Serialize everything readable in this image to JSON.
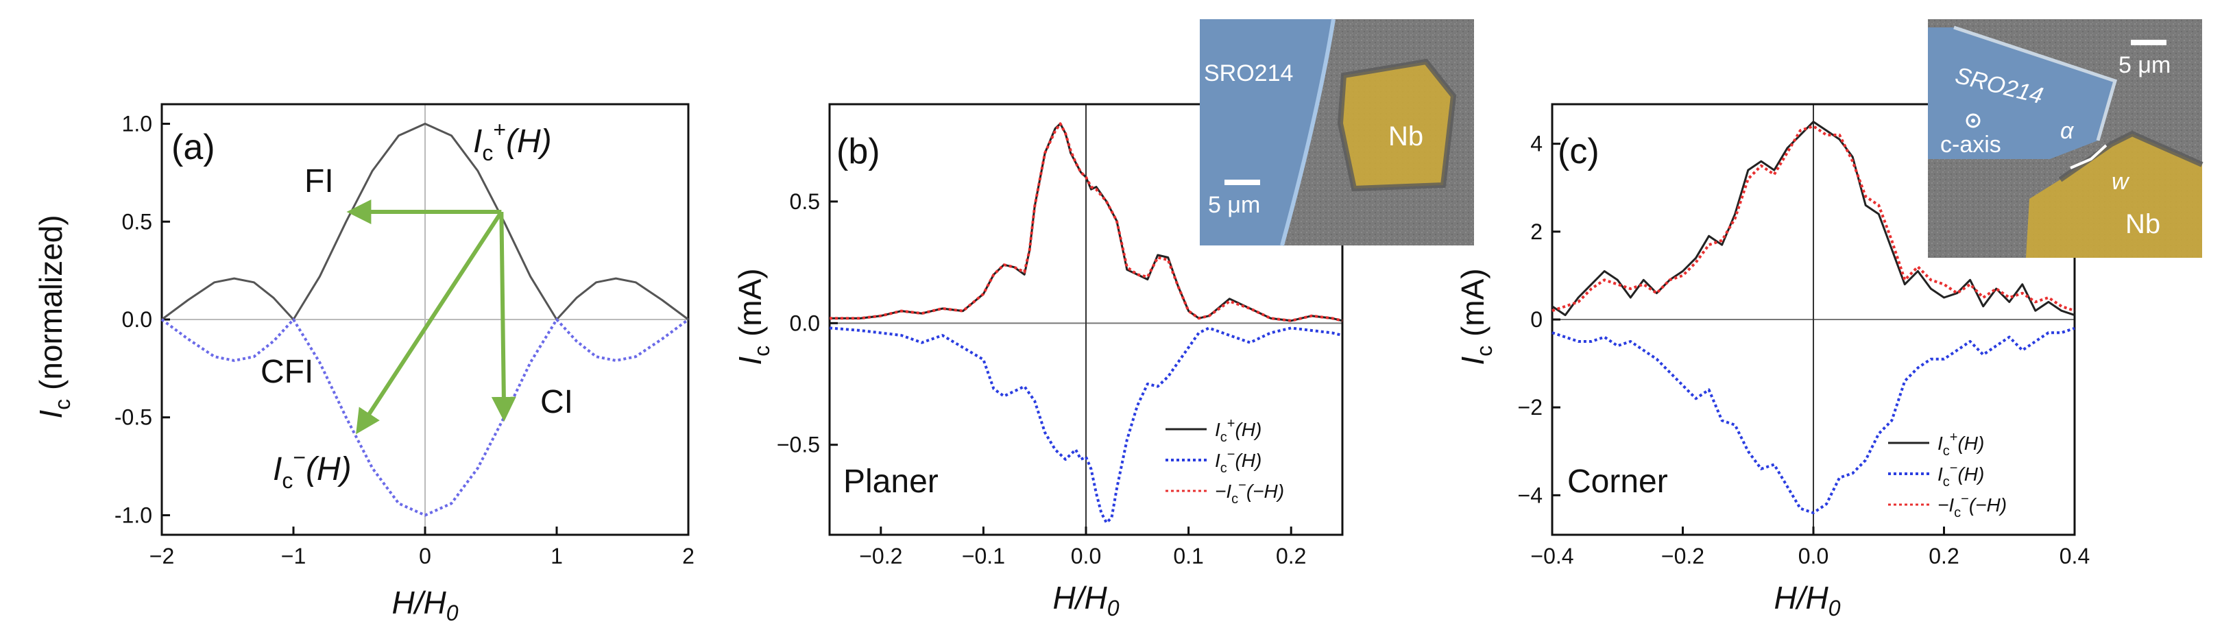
{
  "chart_data": [
    {
      "panel": "(a)",
      "type": "line",
      "xlabel": "H/H0",
      "ylabel": "Ic (normalized)",
      "xlim": [
        -2,
        2
      ],
      "ylim": [
        -1.1,
        1.1
      ],
      "xticks": [
        "−2",
        "−1",
        "0",
        "1",
        "2"
      ],
      "yticks": [
        "1.0",
        "0.5",
        "0.0",
        "-0.5",
        "-1.0"
      ],
      "xtick_values": [
        -2,
        -1,
        0,
        1,
        2
      ],
      "ytick_values": [
        1.0,
        0.5,
        0.0,
        -0.5,
        -1.0
      ],
      "series": [
        {
          "name": "Ic+(H)",
          "color": "#555555",
          "style": "solid",
          "x": [
            -2,
            -1.8,
            -1.6,
            -1.45,
            -1.3,
            -1.15,
            -1,
            -0.8,
            -0.6,
            -0.4,
            -0.2,
            0,
            0.2,
            0.4,
            0.6,
            0.8,
            1,
            1.15,
            1.3,
            1.45,
            1.6,
            1.8,
            2
          ],
          "y": [
            0,
            0.1,
            0.19,
            0.21,
            0.19,
            0.11,
            0,
            0.22,
            0.5,
            0.76,
            0.94,
            1.0,
            0.94,
            0.76,
            0.5,
            0.22,
            0,
            0.11,
            0.19,
            0.21,
            0.19,
            0.1,
            0
          ]
        },
        {
          "name": "Ic−(H)",
          "color": "#6a6ae8",
          "style": "dotted",
          "x": [
            -2,
            -1.8,
            -1.6,
            -1.45,
            -1.3,
            -1.15,
            -1,
            -0.8,
            -0.6,
            -0.4,
            -0.2,
            0,
            0.2,
            0.4,
            0.6,
            0.8,
            1,
            1.15,
            1.3,
            1.45,
            1.6,
            1.8,
            2
          ],
          "y": [
            0,
            -0.1,
            -0.19,
            -0.21,
            -0.19,
            -0.11,
            0,
            -0.22,
            -0.5,
            -0.76,
            -0.94,
            -1.0,
            -0.94,
            -0.76,
            -0.5,
            -0.22,
            0,
            -0.11,
            -0.19,
            -0.21,
            -0.19,
            -0.1,
            0
          ]
        }
      ],
      "arrows": [
        {
          "from": [
            0.58,
            0.55
          ],
          "to": [
            -0.55,
            0.55
          ]
        },
        {
          "from": [
            0.58,
            0.55
          ],
          "to": [
            -0.5,
            -0.56
          ]
        },
        {
          "from": [
            0.58,
            0.55
          ],
          "to": [
            0.6,
            -0.49
          ]
        }
      ],
      "arrow_color": "#7bb548",
      "annotations": {
        "letter": "(a)",
        "fi": "FI",
        "cfi": "CFI",
        "ci": "CI",
        "ic_plus_main": "I",
        "ic_plus_sub": "c",
        "ic_plus_sup": "+",
        "ic_plus_arg": "(H)",
        "ic_minus_main": "I",
        "ic_minus_sub": "c",
        "ic_minus_sup": "−",
        "ic_minus_arg": "(H)"
      },
      "ylabel_main": "I",
      "ylabel_sub": "c",
      "ylabel_rest": " (normalized)",
      "xlabel_main": "H/H",
      "xlabel_sub": "0"
    },
    {
      "panel": "(b)",
      "type": "line",
      "xlabel": "H/H0",
      "ylabel": "Ic (mA)",
      "xlim": [
        -0.25,
        0.25
      ],
      "ylim": [
        -0.87,
        0.9
      ],
      "xticks": [
        "−0.2",
        "−0.1",
        "0.0",
        "0.1",
        "0.2"
      ],
      "yticks": [
        "0.5",
        "0.0",
        "−0.5"
      ],
      "xtick_values": [
        -0.2,
        -0.1,
        0.0,
        0.1,
        0.2
      ],
      "ytick_values": [
        0.5,
        0.0,
        -0.5
      ],
      "series": [
        {
          "name": "Ic+(H)",
          "color": "#222222",
          "style": "solid",
          "x": [
            -0.25,
            -0.22,
            -0.2,
            -0.18,
            -0.16,
            -0.14,
            -0.12,
            -0.1,
            -0.09,
            -0.08,
            -0.07,
            -0.06,
            -0.055,
            -0.05,
            -0.04,
            -0.03,
            -0.025,
            -0.02,
            -0.015,
            -0.01,
            -0.005,
            0,
            0.005,
            0.01,
            0.02,
            0.03,
            0.04,
            0.05,
            0.06,
            0.07,
            0.08,
            0.09,
            0.1,
            0.11,
            0.12,
            0.14,
            0.16,
            0.18,
            0.2,
            0.22,
            0.24,
            0.25
          ],
          "y": [
            0.02,
            0.02,
            0.03,
            0.05,
            0.04,
            0.06,
            0.05,
            0.12,
            0.2,
            0.24,
            0.23,
            0.2,
            0.3,
            0.48,
            0.7,
            0.8,
            0.82,
            0.78,
            0.7,
            0.66,
            0.62,
            0.6,
            0.55,
            0.56,
            0.5,
            0.42,
            0.22,
            0.2,
            0.18,
            0.28,
            0.27,
            0.15,
            0.05,
            0.02,
            0.03,
            0.1,
            0.06,
            0.02,
            0.01,
            0.03,
            0.02,
            0.01
          ]
        },
        {
          "name": "Ic−(H)",
          "color": "#2a3de0",
          "style": "dotted",
          "x": [
            -0.25,
            -0.22,
            -0.2,
            -0.18,
            -0.16,
            -0.14,
            -0.12,
            -0.1,
            -0.09,
            -0.08,
            -0.07,
            -0.06,
            -0.05,
            -0.04,
            -0.03,
            -0.02,
            -0.015,
            -0.01,
            -0.005,
            0,
            0.005,
            0.01,
            0.015,
            0.02,
            0.025,
            0.03,
            0.04,
            0.05,
            0.06,
            0.07,
            0.08,
            0.09,
            0.1,
            0.11,
            0.12,
            0.14,
            0.16,
            0.18,
            0.2,
            0.22,
            0.24,
            0.25
          ],
          "y": [
            -0.02,
            -0.03,
            -0.04,
            -0.05,
            -0.08,
            -0.05,
            -0.1,
            -0.15,
            -0.27,
            -0.3,
            -0.28,
            -0.26,
            -0.32,
            -0.45,
            -0.52,
            -0.56,
            -0.54,
            -0.52,
            -0.56,
            -0.55,
            -0.6,
            -0.7,
            -0.78,
            -0.82,
            -0.8,
            -0.68,
            -0.48,
            -0.34,
            -0.25,
            -0.26,
            -0.22,
            -0.16,
            -0.1,
            -0.04,
            -0.02,
            -0.05,
            -0.08,
            -0.04,
            -0.02,
            -0.03,
            -0.04,
            -0.05
          ]
        },
        {
          "name": "−Ic−(−H)",
          "color": "#e83030",
          "style": "dotted",
          "x": [
            -0.25,
            -0.22,
            -0.2,
            -0.18,
            -0.16,
            -0.14,
            -0.12,
            -0.1,
            -0.09,
            -0.08,
            -0.07,
            -0.06,
            -0.055,
            -0.05,
            -0.04,
            -0.03,
            -0.025,
            -0.02,
            -0.015,
            -0.01,
            -0.005,
            0,
            0.005,
            0.01,
            0.02,
            0.03,
            0.04,
            0.05,
            0.06,
            0.07,
            0.08,
            0.09,
            0.1,
            0.11,
            0.12,
            0.14,
            0.16,
            0.18,
            0.2,
            0.22,
            0.24,
            0.25
          ],
          "y": [
            0.02,
            0.02,
            0.03,
            0.05,
            0.04,
            0.06,
            0.05,
            0.12,
            0.2,
            0.24,
            0.23,
            0.21,
            0.3,
            0.48,
            0.7,
            0.79,
            0.82,
            0.78,
            0.71,
            0.66,
            0.62,
            0.6,
            0.56,
            0.55,
            0.5,
            0.42,
            0.23,
            0.2,
            0.19,
            0.27,
            0.26,
            0.15,
            0.05,
            0.02,
            0.03,
            0.09,
            0.06,
            0.02,
            0.01,
            0.03,
            0.02,
            0.01
          ]
        }
      ],
      "legend": [
        {
          "main": "I",
          "sub": "c",
          "sup": "+",
          "arg": "(H)",
          "prefix": ""
        },
        {
          "main": "I",
          "sub": "c",
          "sup": "−",
          "arg": "(H)",
          "prefix": ""
        },
        {
          "main": "I",
          "sub": "c",
          "sup": "−",
          "arg": "(−H)",
          "prefix": "−"
        }
      ],
      "annotations": {
        "letter": "(b)",
        "label": "Planer"
      },
      "inset": {
        "sro": "SRO214",
        "nb": "Nb",
        "scale": "5 μm"
      },
      "ylabel_main": "I",
      "ylabel_sub": "c",
      "ylabel_rest": " (mA)",
      "xlabel_main": "H/H",
      "xlabel_sub": "0"
    },
    {
      "panel": "(c)",
      "type": "line",
      "xlabel": "H/H0",
      "ylabel": "Ic (mA)",
      "xlim": [
        -0.4,
        0.4
      ],
      "ylim": [
        -4.9,
        4.9
      ],
      "xticks": [
        "−0.4",
        "−0.2",
        "0.0",
        "0.2",
        "0.4"
      ],
      "yticks": [
        "4",
        "2",
        "0",
        "−2",
        "−4"
      ],
      "xtick_values": [
        -0.4,
        -0.2,
        0.0,
        0.2,
        0.4
      ],
      "ytick_values": [
        4,
        2,
        0,
        -2,
        -4
      ],
      "series": [
        {
          "name": "Ic+(H)",
          "color": "#222222",
          "style": "solid",
          "x": [
            -0.4,
            -0.38,
            -0.36,
            -0.34,
            -0.32,
            -0.3,
            -0.28,
            -0.26,
            -0.24,
            -0.22,
            -0.2,
            -0.18,
            -0.16,
            -0.14,
            -0.12,
            -0.1,
            -0.08,
            -0.06,
            -0.04,
            -0.02,
            0,
            0.02,
            0.04,
            0.06,
            0.08,
            0.1,
            0.12,
            0.14,
            0.16,
            0.18,
            0.2,
            0.22,
            0.24,
            0.26,
            0.28,
            0.3,
            0.32,
            0.34,
            0.36,
            0.38,
            0.4
          ],
          "y": [
            0.3,
            0.1,
            0.5,
            0.8,
            1.1,
            0.9,
            0.5,
            0.9,
            0.6,
            0.9,
            1.1,
            1.4,
            1.9,
            1.7,
            2.4,
            3.4,
            3.6,
            3.4,
            3.9,
            4.2,
            4.5,
            4.3,
            4.1,
            3.7,
            2.6,
            2.4,
            1.6,
            0.8,
            1.1,
            0.7,
            0.5,
            0.6,
            0.9,
            0.3,
            0.7,
            0.4,
            0.8,
            0.2,
            0.4,
            0.2,
            0.1
          ]
        },
        {
          "name": "Ic−(H)",
          "color": "#2a3de0",
          "style": "dotted",
          "x": [
            -0.4,
            -0.38,
            -0.36,
            -0.34,
            -0.32,
            -0.3,
            -0.28,
            -0.26,
            -0.24,
            -0.22,
            -0.2,
            -0.18,
            -0.16,
            -0.14,
            -0.12,
            -0.1,
            -0.08,
            -0.06,
            -0.04,
            -0.02,
            0,
            0.02,
            0.04,
            0.06,
            0.08,
            0.1,
            0.12,
            0.14,
            0.16,
            0.18,
            0.2,
            0.22,
            0.24,
            0.26,
            0.28,
            0.3,
            0.32,
            0.34,
            0.36,
            0.38,
            0.4
          ],
          "y": [
            -0.3,
            -0.4,
            -0.5,
            -0.5,
            -0.4,
            -0.6,
            -0.5,
            -0.7,
            -0.9,
            -1.2,
            -1.5,
            -1.8,
            -1.6,
            -2.3,
            -2.4,
            -3.0,
            -3.4,
            -3.3,
            -3.8,
            -4.3,
            -4.4,
            -4.2,
            -3.6,
            -3.5,
            -3.2,
            -2.6,
            -2.3,
            -1.4,
            -1.1,
            -0.9,
            -0.9,
            -0.7,
            -0.5,
            -0.8,
            -0.6,
            -0.4,
            -0.7,
            -0.5,
            -0.3,
            -0.3,
            -0.2
          ]
        },
        {
          "name": "−Ic−(−H)",
          "color": "#e83030",
          "style": "dotted",
          "x": [
            -0.4,
            -0.38,
            -0.36,
            -0.34,
            -0.32,
            -0.3,
            -0.28,
            -0.26,
            -0.24,
            -0.22,
            -0.2,
            -0.18,
            -0.16,
            -0.14,
            -0.12,
            -0.1,
            -0.08,
            -0.06,
            -0.04,
            -0.02,
            0,
            0.02,
            0.04,
            0.06,
            0.08,
            0.1,
            0.12,
            0.14,
            0.16,
            0.18,
            0.2,
            0.22,
            0.24,
            0.26,
            0.28,
            0.3,
            0.32,
            0.34,
            0.36,
            0.38,
            0.4
          ],
          "y": [
            0.2,
            0.3,
            0.4,
            0.7,
            0.9,
            0.8,
            0.7,
            0.8,
            0.6,
            0.9,
            1.0,
            1.3,
            1.7,
            1.8,
            2.3,
            3.2,
            3.5,
            3.3,
            3.8,
            4.3,
            4.4,
            4.2,
            4.2,
            3.6,
            2.8,
            2.6,
            1.8,
            0.9,
            1.2,
            0.9,
            0.8,
            0.6,
            0.8,
            0.5,
            0.7,
            0.5,
            0.6,
            0.4,
            0.5,
            0.3,
            0.2
          ]
        }
      ],
      "legend": [
        {
          "main": "I",
          "sub": "c",
          "sup": "+",
          "arg": "(H)",
          "prefix": ""
        },
        {
          "main": "I",
          "sub": "c",
          "sup": "−",
          "arg": "(H)",
          "prefix": ""
        },
        {
          "main": "I",
          "sub": "c",
          "sup": "−",
          "arg": "(−H)",
          "prefix": "−"
        }
      ],
      "annotations": {
        "letter": "(c)",
        "label": "Corner"
      },
      "inset": {
        "sro": "SRO214",
        "nb": "Nb",
        "scale": "5 μm",
        "caxis": "c-axis",
        "alpha": "α",
        "w": "w"
      },
      "ylabel_main": "I",
      "ylabel_sub": "c",
      "ylabel_rest": " (mA)",
      "xlabel_main": "H/H",
      "xlabel_sub": "0"
    }
  ],
  "colors": {
    "axis": "#111111",
    "zero_line": "#888888",
    "sro_blue": "#6f93bd",
    "nb_yellow": "#c9a73c",
    "sem_gray": "#7d7d7d"
  }
}
